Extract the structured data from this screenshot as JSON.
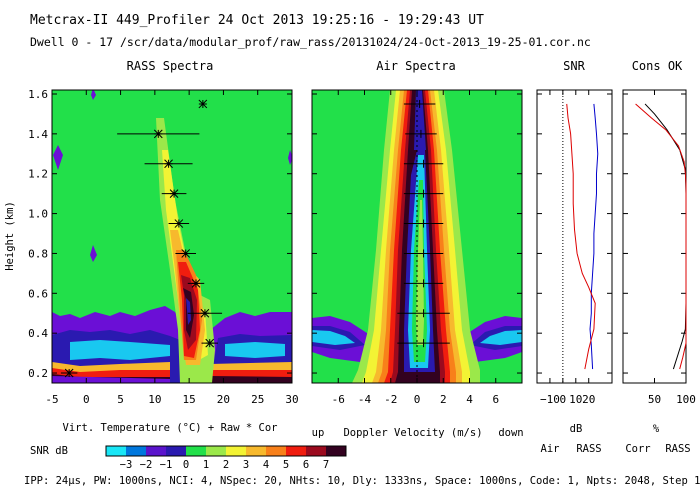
{
  "header": {
    "line1": "Metcrax-II  449_Profiler  24 Oct 2013  19:25:16 - 19:29:43 UT",
    "line2": "Dwell  0 - 17   /scr/data/modular_prof/raw_rass/20131024/24-Oct-2013_19-25-01.cor.nc"
  },
  "footer": "IPP: 24μs, PW: 1000ns, NCI: 4, NSpec: 20, NHts: 10, Dly: 1333ns, Space: 1000ns, Code: 1, Npts: 2048, Step 1",
  "colors": {
    "bg_green": "#22e04a",
    "levels": [
      "#22e04a",
      "#9be84a",
      "#f3f334",
      "#f7b92d",
      "#f8801a",
      "#f01d0f",
      "#9b0a1e",
      "#330220",
      "#2a1ab0",
      "#6b0fd6",
      "#19c8f0"
    ],
    "axis_air": "#0000cc",
    "axis_rass": "#dd0000"
  },
  "chart_data": [
    {
      "type": "heatmap",
      "title": "RASS Spectra",
      "xlabel": "Virt. Temperature (°C)  + Raw  * Cor",
      "ylabel": "Height (km)",
      "xlim": [
        -5,
        30
      ],
      "ylim": [
        0.15,
        1.62
      ],
      "xticks": [
        -5,
        0,
        5,
        10,
        15,
        20,
        25,
        30
      ],
      "yticks": [
        0.2,
        0.4,
        0.6,
        0.8,
        1.0,
        1.2,
        1.4,
        1.6
      ],
      "profile": [
        {
          "h": 0.2,
          "t": -2.5,
          "err": 1.2
        },
        {
          "h": 0.35,
          "t": 18.0,
          "err": 1.2
        },
        {
          "h": 0.5,
          "t": 17.3,
          "err": 2.5
        },
        {
          "h": 0.65,
          "t": 16.0,
          "err": 1.2
        },
        {
          "h": 0.8,
          "t": 14.5,
          "err": 1.5
        },
        {
          "h": 0.95,
          "t": 13.5,
          "err": 1.5
        },
        {
          "h": 1.1,
          "t": 12.8,
          "err": 1.8
        },
        {
          "h": 1.25,
          "t": 12.0,
          "err": 3.5
        },
        {
          "h": 1.4,
          "t": 10.5,
          "err": 6.0
        },
        {
          "h": 1.55,
          "t": 17.0,
          "err": 0
        }
      ]
    },
    {
      "type": "heatmap",
      "title": "Air Spectra",
      "xlabel": "Doppler Velocity (m/s)",
      "xlabel_left": "up",
      "xlabel_right": "down",
      "xlim": [
        -8,
        8
      ],
      "xticks": [
        -6,
        -4,
        -2,
        0,
        2,
        4,
        6
      ],
      "profile": [
        {
          "h": 0.35,
          "v": 0.5,
          "err": 2.0
        },
        {
          "h": 0.5,
          "v": 0.5,
          "err": 2.0
        },
        {
          "h": 0.65,
          "v": 0.5,
          "err": 1.5
        },
        {
          "h": 0.8,
          "v": 0.5,
          "err": 1.5
        },
        {
          "h": 0.95,
          "v": 0.5,
          "err": 1.5
        },
        {
          "h": 1.1,
          "v": 0.5,
          "err": 1.5
        },
        {
          "h": 1.25,
          "v": 0.5,
          "err": 1.5
        },
        {
          "h": 1.4,
          "v": 0.3,
          "err": 1.2
        },
        {
          "h": 1.55,
          "v": 0.2,
          "err": 1.2
        }
      ]
    },
    {
      "type": "line",
      "title": "SNR",
      "xlabel": "dB",
      "xlim": [
        -20,
        38
      ],
      "xticks": [
        -10,
        0,
        10,
        20
      ],
      "xticklabels": [
        "−10",
        "0",
        "10",
        "20"
      ],
      "series": [
        {
          "name": "Air",
          "color": "#0000cc",
          "x": [
            23,
            22,
            21,
            22,
            22,
            23,
            24,
            24,
            25,
            26,
            26,
            27,
            26,
            25,
            24
          ],
          "y": [
            0.22,
            0.34,
            0.42,
            0.5,
            0.6,
            0.7,
            0.8,
            0.9,
            1.0,
            1.1,
            1.2,
            1.3,
            1.4,
            1.48,
            1.55
          ]
        },
        {
          "name": "RASS",
          "color": "#dd0000",
          "x": [
            17,
            20,
            24,
            25,
            20,
            15,
            11,
            9,
            8,
            8,
            7,
            6,
            4,
            3
          ],
          "y": [
            0.22,
            0.32,
            0.42,
            0.55,
            0.63,
            0.7,
            0.8,
            0.92,
            1.05,
            1.2,
            1.3,
            1.4,
            1.48,
            1.55
          ]
        }
      ]
    },
    {
      "type": "line",
      "title": "Cons OK",
      "xlabel": "%",
      "xlim": [
        0,
        100
      ],
      "xticks": [
        50,
        100
      ],
      "xticklabels": [
        "50",
        "100"
      ],
      "legend": [
        "Corr",
        "RASS"
      ],
      "series": [
        {
          "name": "Corr",
          "color": "#000000",
          "x": [
            80,
            88,
            94,
            99,
            100,
            100,
            100,
            100,
            100,
            99,
            90,
            70,
            50,
            35
          ],
          "y": [
            0.22,
            0.3,
            0.36,
            0.42,
            0.55,
            0.7,
            0.85,
            1.0,
            1.1,
            1.22,
            1.32,
            1.42,
            1.5,
            1.55
          ]
        },
        {
          "name": "RASS",
          "color": "#dd0000",
          "x": [
            90,
            95,
            100,
            100,
            100,
            100,
            100,
            100,
            99,
            97,
            88,
            68,
            45,
            20
          ],
          "y": [
            0.22,
            0.28,
            0.35,
            0.45,
            0.6,
            0.8,
            1.0,
            1.15,
            1.2,
            1.26,
            1.34,
            1.42,
            1.48,
            1.55
          ]
        }
      ]
    },
    {
      "type": "colorbar",
      "label": "SNR dB",
      "ticks": [
        "−3",
        "−2",
        "−1",
        "0",
        "1",
        "2",
        "3",
        "4",
        "5",
        "6",
        "7"
      ],
      "colors": [
        "#19e6f6",
        "#0077dd",
        "#5a14cc",
        "#2a1ab0",
        "#22e04a",
        "#9be84a",
        "#f3f334",
        "#f7b92d",
        "#f8801a",
        "#f01d0f",
        "#9b0a1e",
        "#330220"
      ]
    }
  ]
}
